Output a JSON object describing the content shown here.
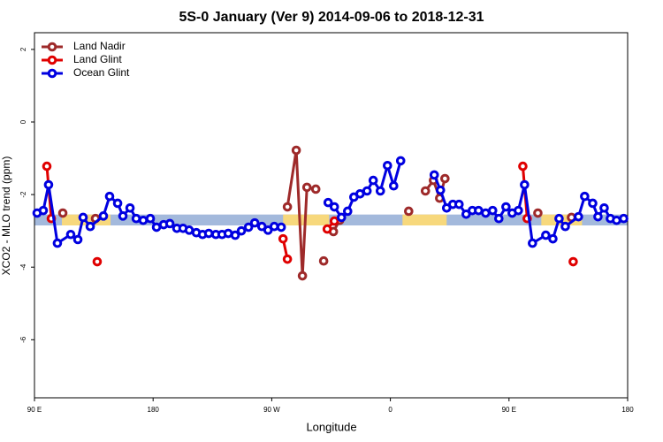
{
  "chart_data": {
    "type": "line",
    "title": "5S-0 January (Ver 9)   2014-09-06 to 2018-12-31",
    "xlabel": "Longitude",
    "ylabel": "XCO2 - MLO trend (ppm)",
    "xlim": [
      90,
      540
    ],
    "xticks": [
      {
        "value": 90,
        "label": "90 E"
      },
      {
        "value": 180,
        "label": "180"
      },
      {
        "value": 270,
        "label": "90 W"
      },
      {
        "value": 360,
        "label": "0"
      },
      {
        "value": 450,
        "label": "90 E"
      },
      {
        "value": 540,
        "label": "180"
      }
    ],
    "ylim": [
      -7.6,
      2.46
    ],
    "yticks": [
      2,
      0,
      -2,
      -4,
      -6
    ],
    "legend": "top-left",
    "band": {
      "ylim": [
        -2.85,
        -2.55
      ],
      "color": "#a3b9dc"
    },
    "highlight": {
      "color": "#f7d87c",
      "ranges": [
        [
          110.8,
          147.7
        ],
        [
          278.6,
          313.5
        ],
        [
          369.2,
          402.7
        ],
        [
          474.5,
          505.4
        ]
      ]
    },
    "series": [
      {
        "name": "Land Nadir",
        "color": "#9e2a2a",
        "x": [
          111.5,
          124,
          136.3,
          210,
          281.9,
          288.6,
          293.3,
          296.7,
          303.4,
          306,
          309.4,
          313,
          316.8,
          321.5,
          350,
          373.9,
          380,
          386.6,
          392.7,
          397.4,
          401.4,
          440,
          471.9,
          485,
          497.4
        ],
        "values": [
          -2.51,
          null,
          -2.66,
          null,
          -2.34,
          -0.78,
          -4.24,
          -1.8,
          -1.85,
          null,
          -3.83,
          null,
          -3.02,
          -2.71,
          null,
          -2.46,
          null,
          -1.9,
          -1.61,
          -2.1,
          -1.56,
          null,
          -2.51,
          null,
          -2.63
        ]
      },
      {
        "name": "Land Glint",
        "color": "#e00000",
        "x": [
          99.4,
          102.8,
          120,
          137.6,
          210,
          278.6,
          281.9,
          300,
          312.1,
          317.5,
          400,
          460.5,
          463.8,
          480,
          498.7
        ],
        "values": [
          -1.22,
          -2.66,
          null,
          -3.85,
          null,
          -3.22,
          -3.78,
          null,
          -2.95,
          -2.73,
          null,
          -1.22,
          -2.66,
          null,
          -3.85
        ]
      },
      {
        "name": "Ocean Glint",
        "color": "#0000e0",
        "x": [
          92,
          96.7,
          100.7,
          107.4,
          117.5,
          122.9,
          126.9,
          132.3,
          142.3,
          147,
          153.1,
          157.1,
          162.5,
          167.2,
          172.5,
          177.9,
          182.6,
          188,
          192.7,
          198,
          202.7,
          207.4,
          212.8,
          217.5,
          222.2,
          227.6,
          232.3,
          237,
          242.3,
          247,
          252.4,
          257.1,
          262.5,
          267.2,
          271.9,
          277.2,
          295,
          312.8,
          317.5,
          322.9,
          327.6,
          332.3,
          337,
          342.3,
          347,
          352.4,
          357.8,
          362.5,
          367.8,
          380,
          393.3,
          398,
          402.7,
          407.4,
          412.1,
          417.5,
          422.2,
          426.9,
          432.3,
          437.6,
          442.3,
          447.7,
          452.4,
          457.1,
          461.8,
          467.8,
          477.9,
          483.3,
          488,
          492.7,
          502.7,
          507.4,
          513.5,
          517.5,
          522.2,
          526.9,
          531.6,
          537
        ],
        "values": [
          -2.51,
          -2.44,
          -1.73,
          -3.34,
          -3.1,
          -3.24,
          -2.63,
          -2.88,
          -2.59,
          -2.05,
          -2.24,
          -2.59,
          -2.37,
          -2.66,
          -2.71,
          -2.66,
          -2.9,
          -2.83,
          -2.8,
          -2.93,
          -2.93,
          -2.98,
          -3.05,
          -3.1,
          -3.07,
          -3.1,
          -3.1,
          -3.07,
          -3.12,
          -3.0,
          -2.9,
          -2.78,
          -2.88,
          -2.98,
          -2.88,
          -2.9,
          null,
          -2.22,
          -2.34,
          -2.63,
          -2.46,
          -2.07,
          -1.98,
          -1.9,
          -1.61,
          -1.9,
          -1.2,
          -1.76,
          -1.07,
          null,
          -1.46,
          -1.88,
          -2.37,
          -2.27,
          -2.27,
          -2.54,
          -2.44,
          -2.44,
          -2.51,
          -2.44,
          -2.66,
          -2.34,
          -2.51,
          -2.44,
          -1.73,
          -3.34,
          -3.12,
          -3.22,
          -2.66,
          -2.88,
          -2.61,
          -2.05,
          -2.24,
          -2.61,
          -2.37,
          -2.66,
          -2.71,
          -2.66
        ]
      }
    ]
  }
}
